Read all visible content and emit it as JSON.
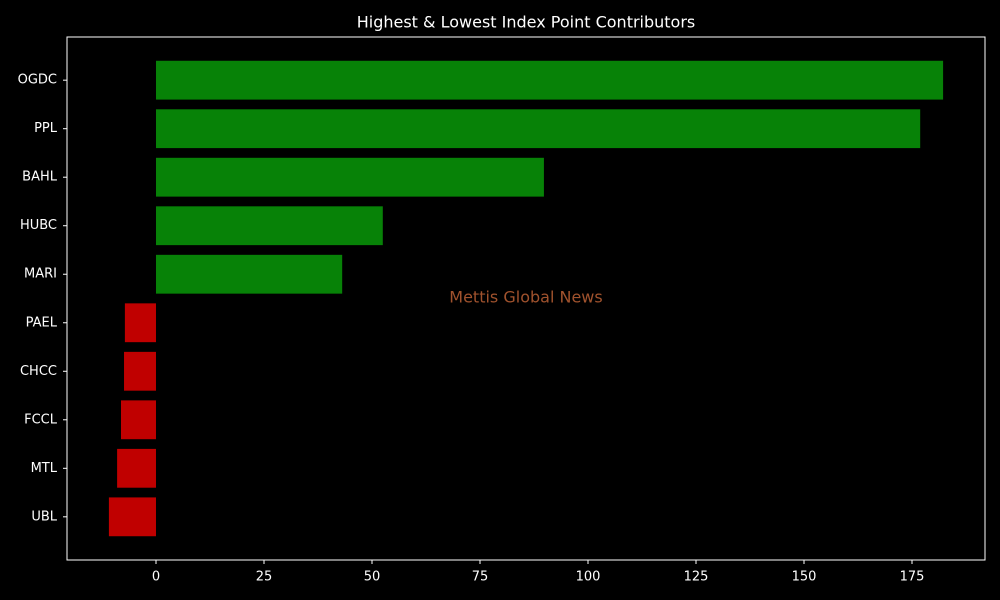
{
  "chart_data": {
    "type": "barh",
    "title": "Highest & Lowest Index Point Contributors",
    "annotation": "Mettis Global News",
    "categories": [
      "OGDC",
      "PPL",
      "BAHL",
      "HUBC",
      "MARI",
      "PAEL",
      "CHCC",
      "FCCL",
      "MTL",
      "UBL"
    ],
    "values": [
      182.2,
      176.9,
      89.8,
      52.5,
      43.1,
      -7.2,
      -7.4,
      -8.1,
      -9.0,
      -10.9
    ],
    "colors": [
      "#078207",
      "#078207",
      "#078207",
      "#078207",
      "#078207",
      "#c00000",
      "#c00000",
      "#c00000",
      "#c00000",
      "#c00000"
    ],
    "xlim": [
      -20.6,
      191.9
    ],
    "xticks": [
      0,
      25,
      50,
      75,
      100,
      125,
      150,
      175
    ]
  }
}
